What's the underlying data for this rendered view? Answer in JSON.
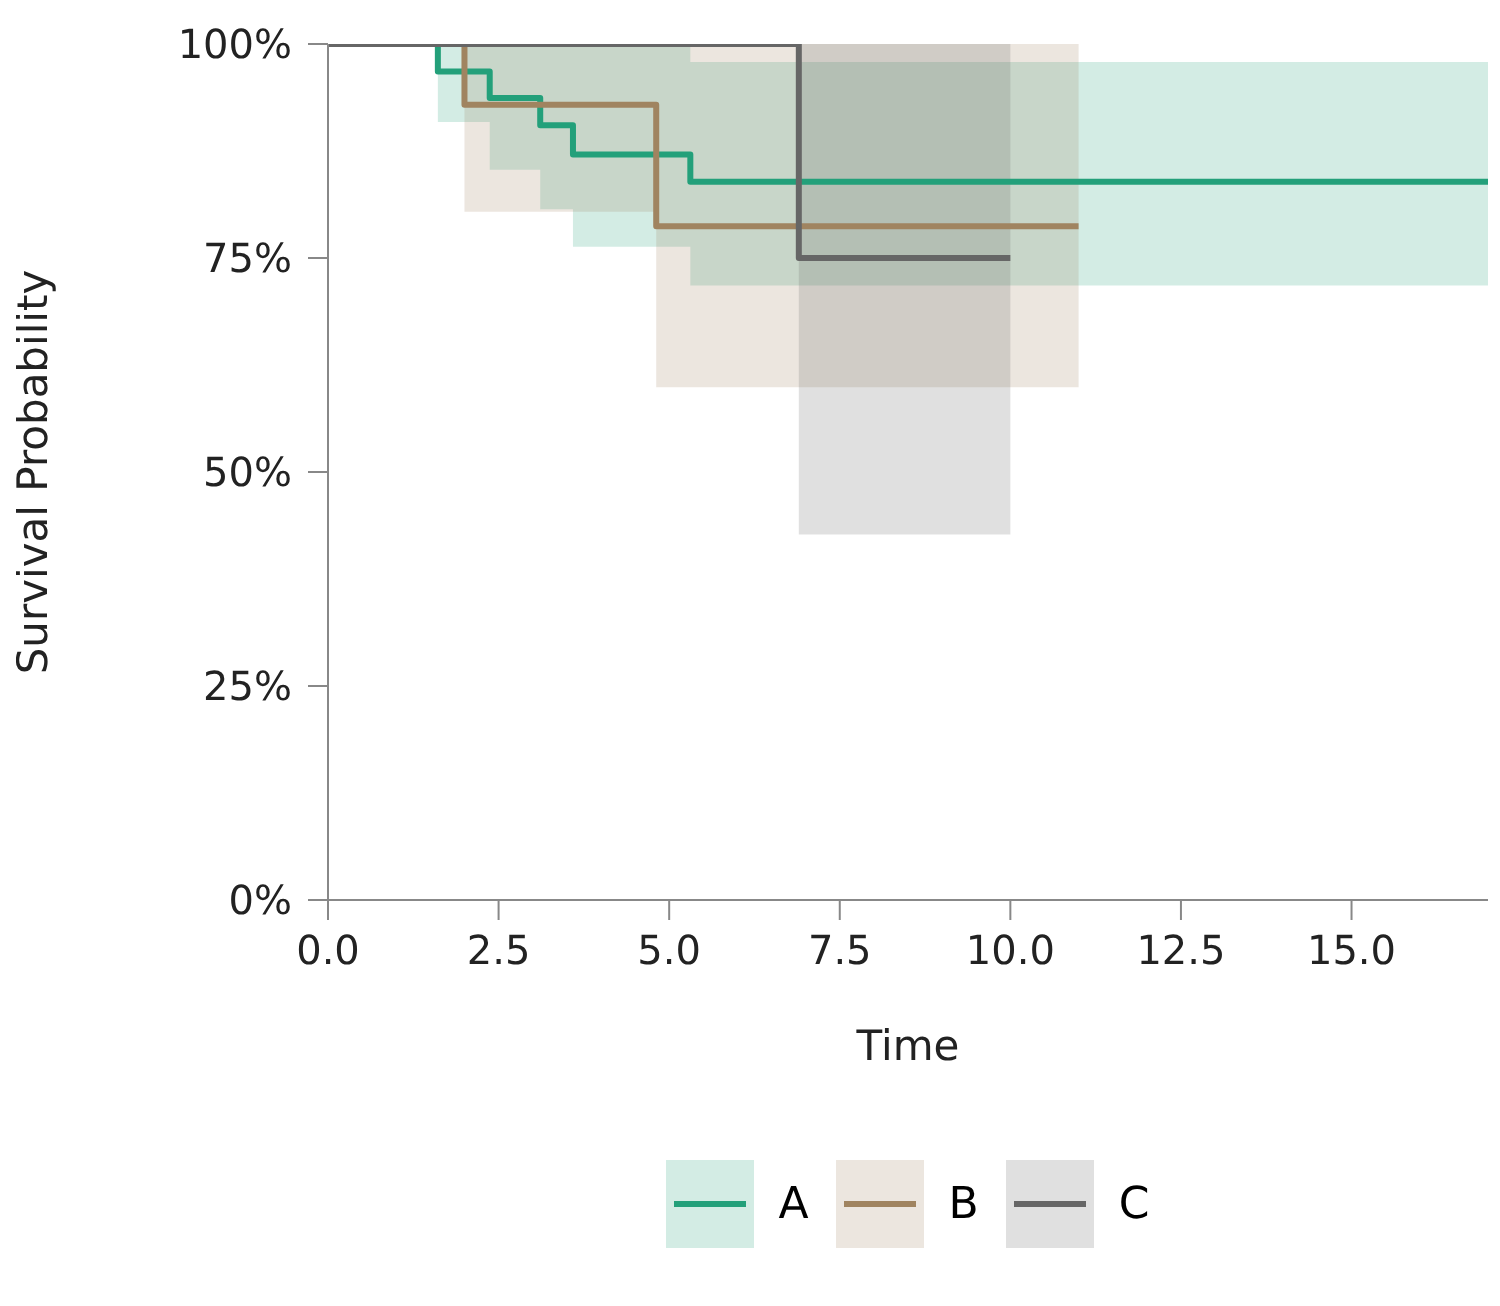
{
  "chart_data": {
    "type": "step",
    "xlabel": "Time",
    "ylabel": "Survival Probability",
    "xlim": [
      0,
      17
    ],
    "xticks": [
      {
        "value": 0,
        "label": "0.0"
      },
      {
        "value": 2.5,
        "label": "2.5"
      },
      {
        "value": 5,
        "label": "5.0"
      },
      {
        "value": 7.5,
        "label": "7.5"
      },
      {
        "value": 10,
        "label": "10.0"
      },
      {
        "value": 12.5,
        "label": "12.5"
      },
      {
        "value": 15,
        "label": "15.0"
      }
    ],
    "ylim": [
      0,
      100
    ],
    "yticks": [
      {
        "value": 0,
        "label": "0%"
      },
      {
        "value": 25,
        "label": "25%"
      },
      {
        "value": 50,
        "label": "50%"
      },
      {
        "value": 75,
        "label": "75%"
      },
      {
        "value": 100,
        "label": "100%"
      }
    ],
    "grid": false,
    "legend": "bottom",
    "marker": "none",
    "line_style": "solid",
    "series": [
      {
        "name": "A",
        "color": "#23a07a",
        "x": [
          0,
          1.61,
          2.37,
          3.11,
          3.59,
          5.31,
          17
        ],
        "values": [
          100,
          96.8,
          93.7,
          90.5,
          87.1,
          83.9,
          83.9
        ],
        "lower": [
          100,
          90.9,
          85.3,
          80.7,
          76.3,
          71.8,
          71.8
        ],
        "upper": [
          100,
          100,
          100,
          100,
          100,
          97.9,
          97.9
        ]
      },
      {
        "name": "B",
        "color": "#a08460",
        "x": [
          0,
          2.0,
          4.81,
          11.0
        ],
        "values": [
          100,
          92.9,
          78.7,
          78.7
        ],
        "lower": [
          100,
          80.4,
          59.9,
          59.9
        ],
        "upper": [
          100,
          100,
          100,
          100
        ]
      },
      {
        "name": "C",
        "color": "#666666",
        "x": [
          0,
          6.9,
          10.0
        ],
        "values": [
          100,
          75,
          75
        ],
        "lower": [
          100,
          42.7,
          42.7
        ],
        "upper": [
          100,
          100,
          100
        ]
      }
    ]
  }
}
